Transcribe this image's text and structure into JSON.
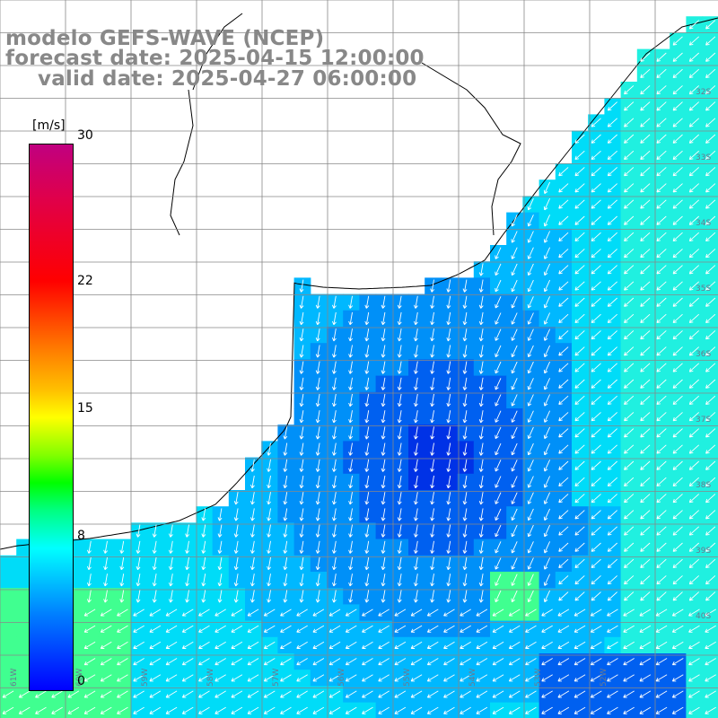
{
  "title": {
    "line1": "modelo GEFS-WAVE (NCEP)",
    "line2": "forecast date: 2025-04-15 12:00:00",
    "line3": "valid date: 2025-04-27 06:00:00"
  },
  "colorbar": {
    "units": "[m/s]",
    "ticks": [
      {
        "value": 30,
        "label": "30"
      },
      {
        "value": 22,
        "label": "22"
      },
      {
        "value": 15,
        "label": "15"
      },
      {
        "value": 8,
        "label": "8"
      },
      {
        "value": 0,
        "label": "0"
      }
    ],
    "min": 0,
    "max": 30
  },
  "map": {
    "ocean_colors": [
      "#0032e6",
      "#0060f0",
      "#0090f8",
      "#00b8ff",
      "#00dcf8",
      "#20f0e0",
      "#40ff90"
    ],
    "land_color": "#ffffff",
    "grid_color": "#888888",
    "arrow_color": "#ffffff",
    "lat_labels": [
      "32S",
      "33S",
      "34S",
      "35S",
      "36S",
      "37S",
      "38S",
      "39S",
      "40S"
    ],
    "lon_labels": [
      "61W",
      "60W",
      "59W",
      "58W",
      "57W",
      "56W",
      "55W",
      "54W",
      "53W",
      "52W"
    ]
  }
}
